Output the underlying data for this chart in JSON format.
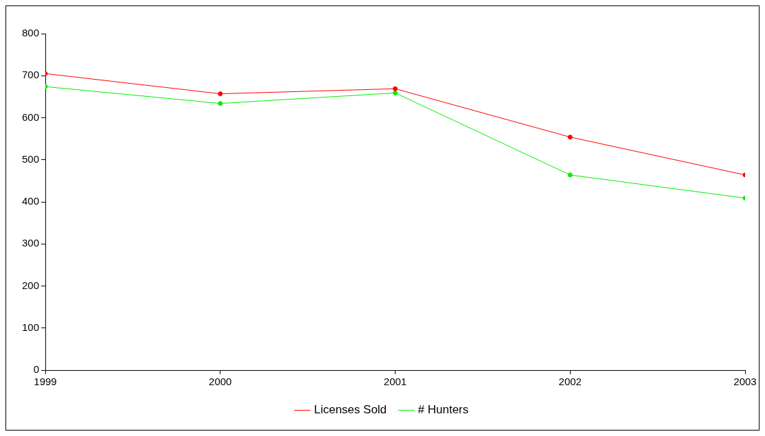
{
  "chart_data": {
    "type": "line",
    "x": [
      1999,
      2000,
      2001,
      2002,
      2003
    ],
    "xlim": [
      1999,
      2003
    ],
    "xticks": [
      1999,
      2000,
      2001,
      2002,
      2003
    ],
    "ylim": [
      0,
      800
    ],
    "yticks": [
      0,
      100,
      200,
      300,
      400,
      500,
      600,
      700,
      800
    ],
    "series": [
      {
        "name": "Licenses Sold",
        "color": "#ff0000",
        "values": [
          705,
          657,
          669,
          554,
          464
        ]
      },
      {
        "name": "# Hunters",
        "color": "#00ee00",
        "values": [
          674,
          634,
          659,
          464,
          409
        ]
      }
    ],
    "grid": false,
    "legend": "bottom",
    "marker": "circle",
    "line_style": "solid"
  }
}
